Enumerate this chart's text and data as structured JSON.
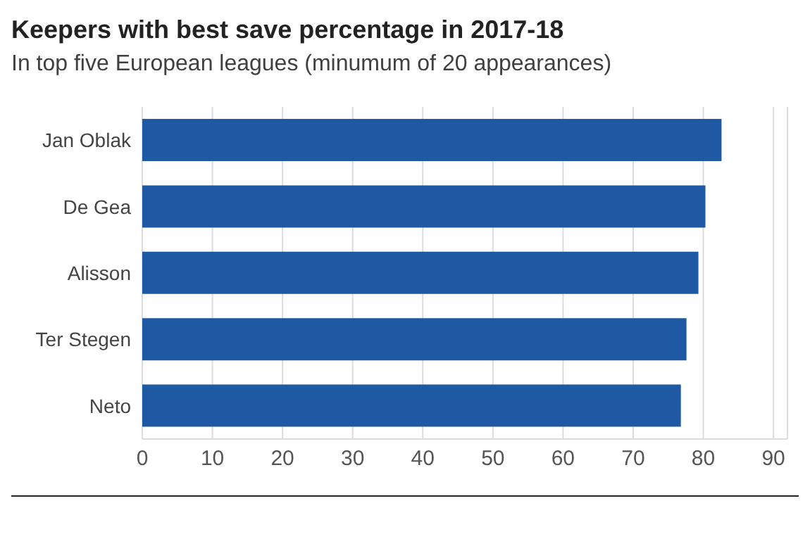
{
  "chart_data": {
    "type": "bar",
    "orientation": "horizontal",
    "title": "Keepers with best save percentage in 2017-18",
    "subtitle": "In top five European leagues (minumum of 20 appearances)",
    "categories": [
      "Jan Oblak",
      "De Gea",
      "Alisson",
      "Ter Stegen",
      "Neto"
    ],
    "values": [
      82.6,
      80.3,
      79.3,
      77.6,
      76.8
    ],
    "color": "#1f58a3",
    "xlim": [
      0,
      92
    ],
    "xticks": [
      0,
      10,
      20,
      30,
      40,
      50,
      60,
      70,
      80,
      90
    ],
    "grid": "x"
  }
}
